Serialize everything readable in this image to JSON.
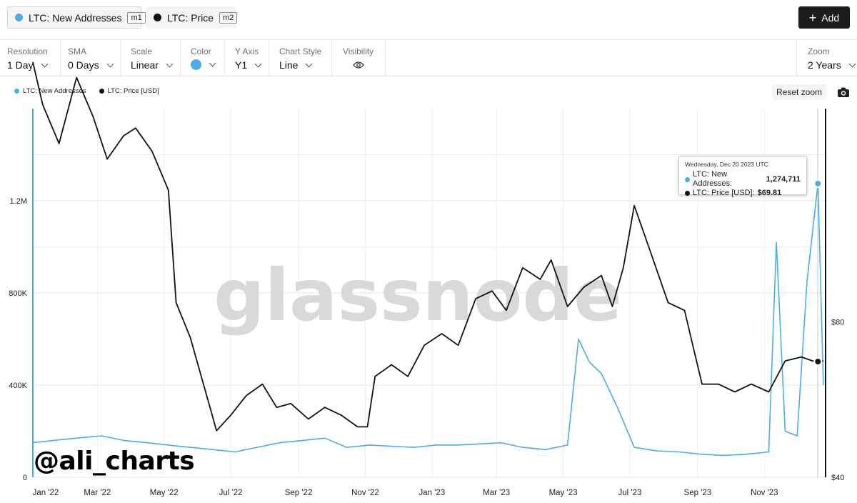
{
  "metrics": [
    {
      "label": "LTC: New Addresses",
      "tag": "m1",
      "color": "#4aaee8"
    },
    {
      "label": "LTC: Price",
      "tag": "m2",
      "color": "#111111"
    }
  ],
  "add_button": {
    "label": "Add",
    "icon": "plus-icon"
  },
  "controls": {
    "resolution": {
      "label": "Resolution",
      "value": "1 Day"
    },
    "sma": {
      "label": "SMA",
      "value": "0 Days"
    },
    "scale": {
      "label": "Scale",
      "value": "Linear"
    },
    "color": {
      "label": "Color",
      "value": "#4aaee8"
    },
    "y_axis": {
      "label": "Y Axis",
      "value": "Y1"
    },
    "chart_style": {
      "label": "Chart Style",
      "value": "Line"
    },
    "visibility": {
      "label": "Visibility",
      "icon": "eye-icon"
    },
    "zoom": {
      "label": "Zoom",
      "value": "2 Years"
    }
  },
  "reset_zoom_label": "Reset zoom",
  "camera_icon": "camera-icon",
  "watermark": "glassnode",
  "handle": "@ali_charts",
  "tooltip": {
    "date": "Wednesday, Dec 20 2023 UTC",
    "addresses_label": "LTC: New Addresses:",
    "addresses_value": "1,274,711",
    "price_label": "LTC: Price [USD]:",
    "price_value": "$69.81"
  },
  "chart_data": {
    "type": "line",
    "legend": [
      "LTC: New Addresses",
      "LTC: Price [USD]"
    ],
    "legend_placement": "top-left",
    "x_ticks": [
      "Jan '22",
      "Mar '22",
      "May '22",
      "Jul '22",
      "Sep '22",
      "Nov '22",
      "Jan '23",
      "Mar '23",
      "May '23",
      "Jul '23",
      "Sep '23",
      "Nov '23"
    ],
    "y_left_ticks": [
      "0",
      "400K",
      "800K",
      "1.2M"
    ],
    "y_left_range": [
      0,
      1600000
    ],
    "y_right_ticks": [
      "$40",
      "$80"
    ],
    "y_right_range": [
      40,
      135
    ],
    "grid": true,
    "series": [
      {
        "name": "LTC: New Addresses",
        "axis": "left",
        "color": "#4aaee8",
        "x": [
          "2022-01-01",
          "2022-01-20",
          "2022-02-10",
          "2022-03-05",
          "2022-03-25",
          "2022-04-15",
          "2022-05-05",
          "2022-05-25",
          "2022-06-15",
          "2022-07-05",
          "2022-07-25",
          "2022-08-15",
          "2022-09-05",
          "2022-09-25",
          "2022-10-15",
          "2022-11-05",
          "2022-11-25",
          "2022-12-15",
          "2023-01-05",
          "2023-01-25",
          "2023-02-15",
          "2023-03-05",
          "2023-03-25",
          "2023-04-15",
          "2023-05-05",
          "2023-05-15",
          "2023-05-25",
          "2023-06-05",
          "2023-06-20",
          "2023-07-05",
          "2023-07-25",
          "2023-08-15",
          "2023-09-05",
          "2023-09-25",
          "2023-10-15",
          "2023-11-05",
          "2023-11-12",
          "2023-11-20",
          "2023-12-01",
          "2023-12-10",
          "2023-12-20",
          "2023-12-25"
        ],
        "y": [
          150000,
          160000,
          170000,
          180000,
          160000,
          150000,
          140000,
          130000,
          120000,
          110000,
          130000,
          150000,
          160000,
          170000,
          130000,
          140000,
          135000,
          130000,
          140000,
          140000,
          145000,
          150000,
          130000,
          120000,
          140000,
          600000,
          500000,
          450000,
          300000,
          130000,
          115000,
          110000,
          100000,
          95000,
          100000,
          110000,
          1020000,
          200000,
          180000,
          850000,
          1274711,
          400000
        ]
      },
      {
        "name": "LTC: Price [USD]",
        "axis": "right",
        "color": "#111111",
        "x": [
          "2022-01-01",
          "2022-01-10",
          "2022-01-25",
          "2022-02-10",
          "2022-02-25",
          "2022-03-10",
          "2022-03-25",
          "2022-04-05",
          "2022-04-20",
          "2022-05-05",
          "2022-05-12",
          "2022-05-25",
          "2022-06-10",
          "2022-06-18",
          "2022-07-01",
          "2022-07-15",
          "2022-07-30",
          "2022-08-12",
          "2022-08-25",
          "2022-09-10",
          "2022-09-25",
          "2022-10-10",
          "2022-10-25",
          "2022-11-03",
          "2022-11-10",
          "2022-11-25",
          "2022-12-10",
          "2022-12-25",
          "2023-01-10",
          "2023-01-25",
          "2023-02-10",
          "2023-02-25",
          "2023-03-10",
          "2023-03-25",
          "2023-04-10",
          "2023-04-20",
          "2023-05-05",
          "2023-05-20",
          "2023-06-05",
          "2023-06-15",
          "2023-06-25",
          "2023-07-05",
          "2023-07-20",
          "2023-08-05",
          "2023-08-20",
          "2023-09-05",
          "2023-09-20",
          "2023-10-05",
          "2023-10-20",
          "2023-11-05",
          "2023-11-20",
          "2023-12-05",
          "2023-12-15",
          "2023-12-20",
          "2023-12-25"
        ],
        "y": [
          147,
          136,
          126,
          143,
          133,
          122,
          128,
          130,
          124,
          114,
          85,
          76,
          60,
          52,
          56,
          61,
          64,
          58,
          59,
          55,
          58,
          56,
          53,
          53,
          66,
          69,
          66,
          74,
          77,
          74,
          86,
          88,
          83,
          94,
          91,
          96,
          84,
          89,
          92,
          84,
          94,
          110,
          98,
          85,
          83,
          64,
          64,
          62,
          64,
          62,
          70,
          71,
          70,
          69.81,
          70
        ]
      }
    ]
  }
}
